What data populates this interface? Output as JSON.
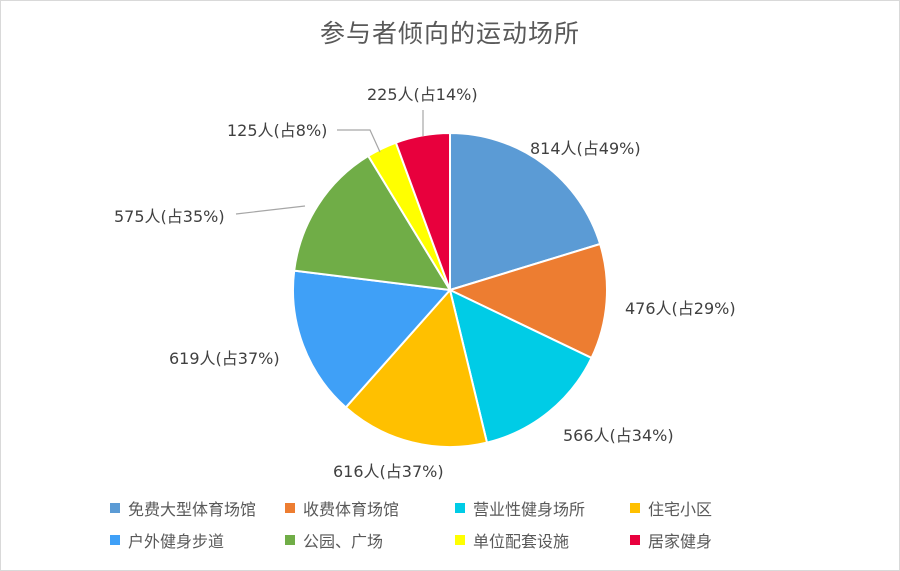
{
  "title": "参与者倾向的运动场所",
  "chart_data": {
    "type": "pie",
    "title": "参与者倾向的运动场所",
    "slices": [
      {
        "name": "免费大型体育场馆",
        "value": 814,
        "label": "814人(占49%)",
        "color": "#5B9BD5"
      },
      {
        "name": "收费体育场馆",
        "value": 476,
        "label": "476人(占29%)",
        "color": "#ED7D31"
      },
      {
        "name": "营业性健身场所",
        "value": 566,
        "label": "566人(占34%)",
        "color": "#00CCE6"
      },
      {
        "name": "住宅小区",
        "value": 616,
        "label": "616人(占37%)",
        "color": "#FFC000"
      },
      {
        "name": "户外健身步道",
        "value": 619,
        "label": "619人(占37%)",
        "color": "#3FA0F7"
      },
      {
        "name": "公园、广场",
        "value": 575,
        "label": "575人(占35%)",
        "color": "#70AD47"
      },
      {
        "name": "单位配套设施",
        "value": 125,
        "label": "125人(占8%)",
        "color": "#FFFF00"
      },
      {
        "name": "居家健身",
        "value": 225,
        "label": "225人(占14%)",
        "color": "#E8003D"
      }
    ],
    "legend_position": "bottom"
  }
}
